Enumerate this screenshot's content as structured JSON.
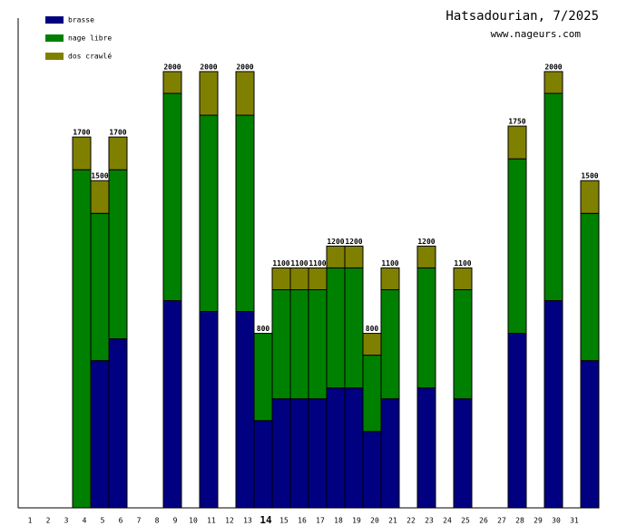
{
  "chart_data": {
    "type": "stacked-bar",
    "title": "Hatsadourian, 7/2025",
    "subtitle": "www.nageurs.com",
    "categories": [
      "1",
      "2",
      "3",
      "4",
      "5",
      "6",
      "7",
      "8",
      "9",
      "10",
      "11",
      "12",
      "13",
      "14",
      "15",
      "16",
      "17",
      "18",
      "19",
      "20",
      "21",
      "22",
      "23",
      "24",
      "25",
      "26",
      "27",
      "28",
      "29",
      "30",
      "31"
    ],
    "highlighted_index": 13,
    "ylim": [
      0,
      2245
    ],
    "series": [
      {
        "name": "brasse",
        "color": "#000080",
        "values": [
          null,
          null,
          0,
          675,
          775,
          null,
          null,
          950,
          null,
          900,
          null,
          900,
          400,
          500,
          500,
          500,
          550,
          550,
          350,
          500,
          null,
          550,
          null,
          500,
          null,
          null,
          800,
          null,
          950,
          null,
          675
        ]
      },
      {
        "name": "nage libre",
        "color": "#008000",
        "values": [
          null,
          null,
          1550,
          675,
          775,
          null,
          null,
          950,
          null,
          900,
          null,
          900,
          400,
          500,
          500,
          500,
          550,
          550,
          350,
          500,
          null,
          550,
          null,
          500,
          null,
          null,
          800,
          null,
          950,
          null,
          675
        ]
      },
      {
        "name": "dos crawlé",
        "color": "#808000",
        "values": [
          null,
          null,
          150,
          150,
          150,
          null,
          null,
          100,
          null,
          200,
          null,
          200,
          0,
          100,
          100,
          100,
          100,
          100,
          100,
          100,
          null,
          100,
          null,
          100,
          null,
          null,
          150,
          null,
          100,
          null,
          150
        ]
      }
    ],
    "totals": [
      null,
      null,
      1700,
      1500,
      1700,
      null,
      null,
      2000,
      null,
      2000,
      null,
      2000,
      800,
      1100,
      1100,
      1100,
      1200,
      1200,
      800,
      1100,
      null,
      1200,
      null,
      1100,
      null,
      null,
      1750,
      null,
      2000,
      null,
      1500
    ]
  }
}
